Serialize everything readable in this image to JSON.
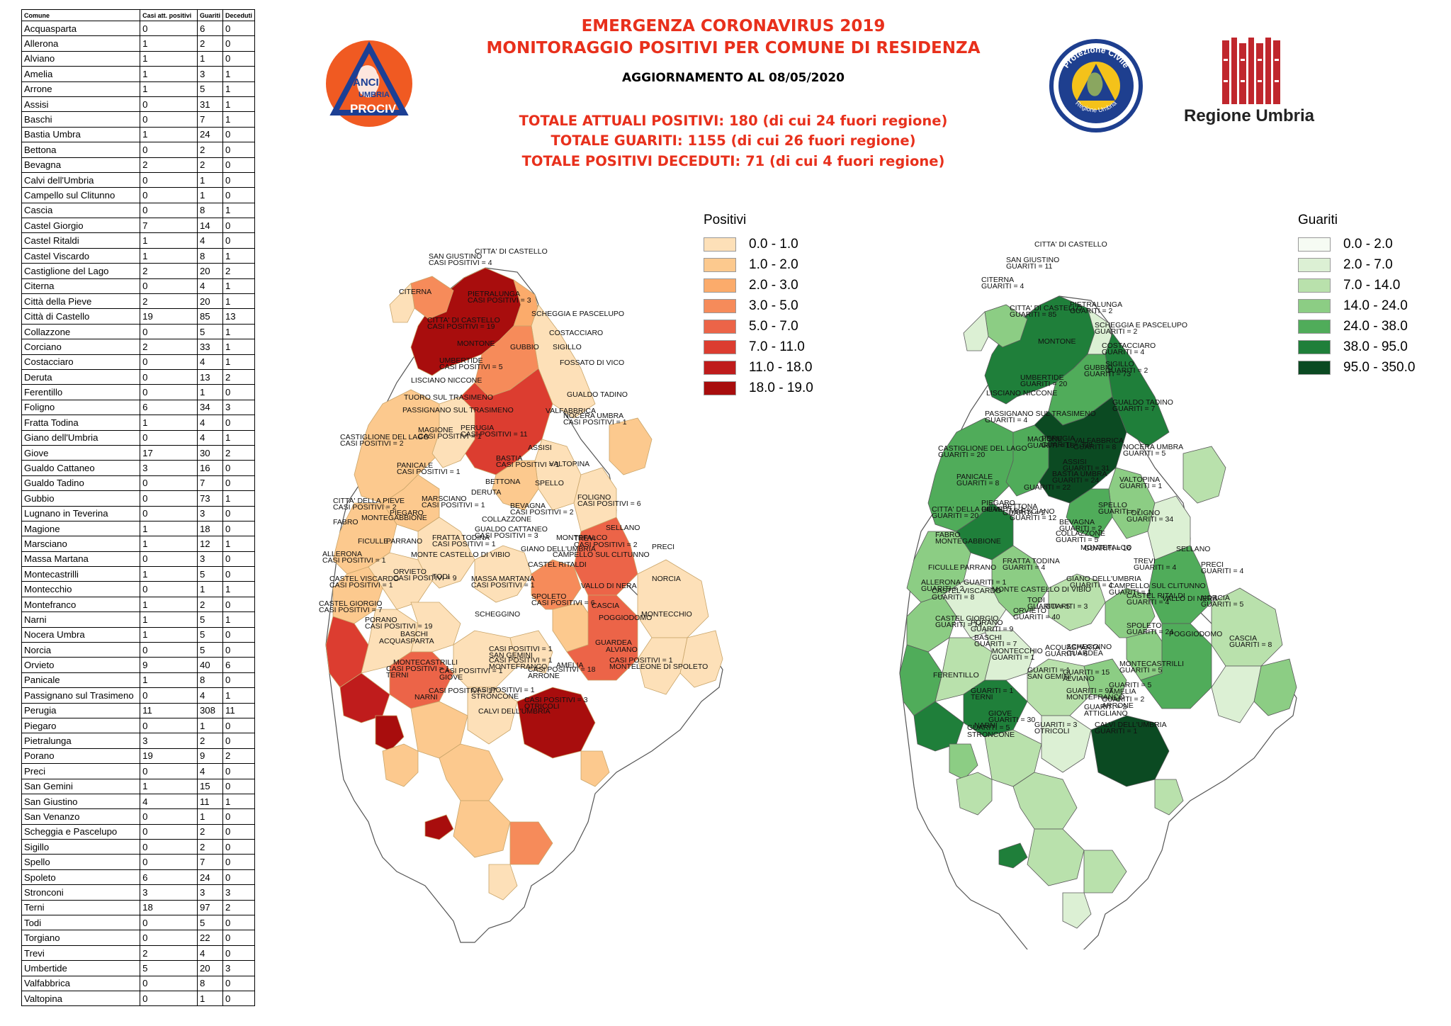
{
  "table": {
    "headers": [
      "Comune",
      "Casi att. positivi",
      "Guariti",
      "Deceduti"
    ],
    "rows": [
      [
        "Acquasparta",
        "0",
        "6",
        "0"
      ],
      [
        "Allerona",
        "1",
        "2",
        "0"
      ],
      [
        "Alviano",
        "1",
        "1",
        "0"
      ],
      [
        "Amelia",
        "1",
        "3",
        "1"
      ],
      [
        "Arrone",
        "1",
        "5",
        "1"
      ],
      [
        "Assisi",
        "0",
        "31",
        "1"
      ],
      [
        "Baschi",
        "0",
        "7",
        "1"
      ],
      [
        "Bastia Umbra",
        "1",
        "24",
        "0"
      ],
      [
        "Bettona",
        "0",
        "2",
        "0"
      ],
      [
        "Bevagna",
        "2",
        "2",
        "0"
      ],
      [
        "Calvi dell'Umbria",
        "0",
        "1",
        "0"
      ],
      [
        "Campello sul Clitunno",
        "0",
        "1",
        "0"
      ],
      [
        "Cascia",
        "0",
        "8",
        "1"
      ],
      [
        "Castel Giorgio",
        "7",
        "14",
        "0"
      ],
      [
        "Castel Ritaldi",
        "1",
        "4",
        "0"
      ],
      [
        "Castel Viscardo",
        "1",
        "8",
        "1"
      ],
      [
        "Castiglione del Lago",
        "2",
        "20",
        "2"
      ],
      [
        "Citerna",
        "0",
        "4",
        "1"
      ],
      [
        "Città  della Pieve",
        "2",
        "20",
        "1"
      ],
      [
        "Città  di Castello",
        "19",
        "85",
        "13"
      ],
      [
        "Collazzone",
        "0",
        "5",
        "1"
      ],
      [
        "Corciano",
        "2",
        "33",
        "1"
      ],
      [
        "Costacciaro",
        "0",
        "4",
        "1"
      ],
      [
        "Deruta",
        "0",
        "13",
        "2"
      ],
      [
        "Ferentillo",
        "0",
        "1",
        "0"
      ],
      [
        "Foligno",
        "6",
        "34",
        "3"
      ],
      [
        "Fratta Todina",
        "1",
        "4",
        "0"
      ],
      [
        "Giano dell'Umbria",
        "0",
        "4",
        "1"
      ],
      [
        "Giove",
        "17",
        "30",
        "2"
      ],
      [
        "Gualdo Cattaneo",
        "3",
        "16",
        "0"
      ],
      [
        "Gualdo Tadino",
        "0",
        "7",
        "0"
      ],
      [
        "Gubbio",
        "0",
        "73",
        "1"
      ],
      [
        "Lugnano in Teverina",
        "0",
        "3",
        "0"
      ],
      [
        "Magione",
        "1",
        "18",
        "0"
      ],
      [
        "Marsciano",
        "1",
        "12",
        "1"
      ],
      [
        "Massa Martana",
        "0",
        "3",
        "0"
      ],
      [
        "Montecastrilli",
        "1",
        "5",
        "0"
      ],
      [
        "Montecchio",
        "0",
        "1",
        "1"
      ],
      [
        "Montefranco",
        "1",
        "2",
        "0"
      ],
      [
        "Narni",
        "1",
        "5",
        "1"
      ],
      [
        "Nocera Umbra",
        "1",
        "5",
        "0"
      ],
      [
        "Norcia",
        "0",
        "5",
        "0"
      ],
      [
        "Orvieto",
        "9",
        "40",
        "6"
      ],
      [
        "Panicale",
        "1",
        "8",
        "0"
      ],
      [
        "Passignano sul Trasimeno",
        "0",
        "4",
        "1"
      ],
      [
        "Perugia",
        "11",
        "308",
        "11"
      ],
      [
        "Piegaro",
        "0",
        "1",
        "0"
      ],
      [
        "Pietralunga",
        "3",
        "2",
        "0"
      ],
      [
        "Porano",
        "19",
        "9",
        "2"
      ],
      [
        "Preci",
        "0",
        "4",
        "0"
      ],
      [
        "San Gemini",
        "1",
        "15",
        "0"
      ],
      [
        "San Giustino",
        "4",
        "11",
        "1"
      ],
      [
        "San Venanzo",
        "0",
        "1",
        "0"
      ],
      [
        "Scheggia e Pascelupo",
        "0",
        "2",
        "0"
      ],
      [
        "Sigillo",
        "0",
        "2",
        "0"
      ],
      [
        "Spello",
        "0",
        "7",
        "0"
      ],
      [
        "Spoleto",
        "6",
        "24",
        "0"
      ],
      [
        "Stronconi",
        "3",
        "3",
        "3"
      ],
      [
        "Terni",
        "18",
        "97",
        "2"
      ],
      [
        "Todi",
        "0",
        "5",
        "0"
      ],
      [
        "Torgiano",
        "0",
        "22",
        "0"
      ],
      [
        "Trevi",
        "2",
        "4",
        "0"
      ],
      [
        "Umbertide",
        "5",
        "20",
        "3"
      ],
      [
        "Valfabbrica",
        "0",
        "8",
        "0"
      ],
      [
        "Valtopina",
        "0",
        "1",
        "0"
      ]
    ]
  },
  "header": {
    "title1": "EMERGENZA CORONAVIRUS 2019",
    "title2": "MONITORAGGIO POSITIVI PER COMUNE DI RESIDENZA",
    "update": "AGGIORNAMENTO AL 08/05/2020",
    "tot1": "TOTALE ATTUALI POSITIVI: 180 (di cui 24 fuori regione)",
    "tot2": "TOTALE GUARITI: 1155 (di cui 26 fuori regione)",
    "tot3": "TOTALE POSITIVI DECEDUTI: 71 (di cui 4 fuori regione)"
  },
  "logos": {
    "anci_line1": "ANCI",
    "anci_line2": "UMBRIA",
    "anci_line3": "PROCIV",
    "pc_text": "Protezione Civile",
    "pc_sub": "Regione Umbria",
    "ru_text": "Regione Umbria"
  },
  "legend_positivi": {
    "title": "Positivi",
    "items": [
      {
        "label": "0.0 - 1.0",
        "color": "#fde0b8"
      },
      {
        "label": "1.0 - 2.0",
        "color": "#fcc98e"
      },
      {
        "label": "2.0 - 3.0",
        "color": "#fbab6b"
      },
      {
        "label": "3.0 - 5.0",
        "color": "#f68b5a"
      },
      {
        "label": "5.0 - 7.0",
        "color": "#ec6448"
      },
      {
        "label": "7.0 - 11.0",
        "color": "#dc3d30"
      },
      {
        "label": "11.0 - 18.0",
        "color": "#bf1c1c"
      },
      {
        "label": "18.0 - 19.0",
        "color": "#a80d0d"
      }
    ]
  },
  "legend_guariti": {
    "title": "Guariti",
    "items": [
      {
        "label": "0.0 - 2.0",
        "color": "#f6fbf3"
      },
      {
        "label": "2.0 - 7.0",
        "color": "#dcf0d4"
      },
      {
        "label": "7.0 - 14.0",
        "color": "#b9e1ac"
      },
      {
        "label": "14.0 - 24.0",
        "color": "#8ccd84"
      },
      {
        "label": "24.0 - 38.0",
        "color": "#50ac5a"
      },
      {
        "label": "38.0 - 95.0",
        "color": "#1f7f3a"
      },
      {
        "label": "95.0 - 350.0",
        "color": "#0b4a22"
      }
    ]
  },
  "map_positivi_labels": [
    "CITTA' DI CASTELLO",
    "SAN GIUSTINO",
    "CASI POSITIVI = 4",
    "CITERNA",
    "CITTA' DI CASTELLO",
    "CASI POSITIVI = 19",
    "PIETRALUNGA",
    "CASI POSITIVI = 3",
    "MONTONE",
    "UMBERTIDE",
    "CASI POSITIVI = 5",
    "SCHEGGIA E PASCELUPO",
    "COSTACCIARO",
    "SIGILLO",
    "GUBBIO",
    "FOSSATO DI VICO",
    "LISCIANO NICCONE",
    "TUORO SUL TRASIMENO",
    "PASSIGNANO SUL TRASIMENO",
    "PERUGIA",
    "CASI POSITIVI = 11",
    "GUALDO TADINO",
    "VALFABBRICA",
    "CASTIGLIONE DEL LAGO",
    "CASI POSITIVI = 2",
    "MAGIONE",
    "CASI POSITIVI = 1",
    "NOCERA UMBRA",
    "CASI POSITIVI = 1",
    "ASSISI",
    "BASTIA",
    "CASI POSITIVI = 1",
    "PANICALE",
    "CASI POSITIVI = 1",
    "VALTOPINA",
    "BETTONA",
    "SPELLO",
    "CITTA' DELLA PIEVE",
    "CASI POSITIVI = 2",
    "PIEGARO",
    "MARSCIANO",
    "CASI POSITIVI = 1",
    "DERUTA",
    "BEVAGNA",
    "CASI POSITIVI = 2",
    "FOLIGNO",
    "CASI POSITIVI = 6",
    "FABRO",
    "MONTEGABBIONE",
    "COLLAZZONE",
    "GUALDO CATTANEO",
    "CASI POSITIVI = 3",
    "SELLANO",
    "TREVI",
    "CASI POSITIVI = 2",
    "FICULLE",
    "PARRANO",
    "FRATTA TODINA",
    "CASI POSITIVI = 1",
    "MONTEFALCO",
    "ALLERONA",
    "CASI POSITIVI = 1",
    "MONTE CASTELLO DI VIBIO",
    "GIANO DELL'UMBRIA",
    "CAMPELLO SUL CLITUNNO",
    "PRECI",
    "CASTEL VISCARDO",
    "CASI POSITIVI = 1",
    "ORVIETO",
    "CASI POSITIVI = 9",
    "TODI",
    "MASSA MARTANA",
    "CASI POSITIVI = 1",
    "CASTEL RITALDI",
    "CASTEL GIORGIO",
    "CASI POSITIVI = 7",
    "SPOLETO",
    "CASI POSITIVI = 6",
    "VALLO DI NERA",
    "NORCIA",
    "PORANO",
    "CASI POSITIVI = 19",
    "BASCHI",
    "POGGIODOMO",
    "CASCIA",
    "MONTECCHIO",
    "ACQUASPARTA",
    "SCHEGGINO",
    "GUARDEA",
    "MONTECASTRILLI",
    "CASI POSITIVI = 1",
    "SAN GEMINI",
    "CASI POSITIVI = 1",
    "MONTEFRANCO",
    "CASI POSITIVI = 1",
    "MONTELEONE DI SPOLETO",
    "ALVIANO",
    "CASI POSITIVI = 1",
    "TERNI",
    "CASI POSITIVI = 18",
    "ARRONE",
    "AMELIA",
    "CASI POSITIVI = 1",
    "GIOVE",
    "CASI POSITIVI = 17",
    "NARNI",
    "CASI POSITIVI = 1",
    "STRONCONE",
    "CASI POSITIVI = 3",
    "OTRICOLI",
    "CALVI DELL'UMBRIA"
  ],
  "map_guariti_labels": [
    "CITTA' DI CASTELLO",
    "SAN GIUSTINO",
    "GUARITI = 11",
    "CITERNA",
    "GUARITI = 4",
    "CITTA' DI CASTELLO",
    "GUARITI = 85",
    "PIETRALUNGA",
    "GUARITI = 2",
    "SCHEGGIA E PASCELUPO",
    "GUARITI = 2",
    "MONTONE",
    "COSTACCIARO",
    "GUARITI = 4",
    "SIGILLO",
    "GUARITI = 2",
    "UMBERTIDE",
    "GUARITI = 20",
    "GUBBIO",
    "GUARITI = 73",
    "LISCIANO NICCONE",
    "GUALDO TADINO",
    "GUARITI = 7",
    "PASSIGNANO SUL TRASIMENO",
    "GUARITI = 4",
    "VALFABBRICA",
    "GUARITI = 8",
    "CASTIGLIONE DEL LAGO",
    "GUARITI = 20",
    "MAGIONE",
    "GUARITI = 18",
    "PERUGIA",
    "GUARITI = 308",
    "NOCERA UMBRA",
    "GUARITI = 5",
    "ASSISI",
    "GUARITI = 31",
    "BASTIA UMBRA",
    "GUARITI = 24",
    "VALTOPINA",
    "GUARITI = 1",
    "PANICALE",
    "GUARITI = 8",
    "GUARITI = 22",
    "BETTONA",
    "GUARITI = 2",
    "SPELLO",
    "GUARITI = 7",
    "CITTA' DELLA PIEVE",
    "GUARITI = 20",
    "PIEGARO",
    "GUARITI = 1",
    "MARSCIANO",
    "GUARITI = 12",
    "FOLIGNO",
    "GUARITI = 34",
    "BEVAGNA",
    "GUARITI = 2",
    "FABRO",
    "MONTEGABBIONE",
    "COLLAZZONE",
    "GUARITI = 5",
    "GUARITI = 16",
    "MONTEFALCO",
    "SELLANO",
    "FICULLE",
    "PARRANO",
    "FRATTA TODINA",
    "GUARITI = 4",
    "TREVI",
    "GUARITI = 4",
    "PRECI",
    "GUARITI = 4",
    "ALLERONA",
    "GUARITI = 2",
    "GUARITI = 1",
    "MONTE CASTELLO DI VIBIO",
    "GIANO DELL'UMBRIA",
    "GUARITI = 4",
    "CAMPELLO SUL CLITUNNO",
    "GUARITI = 1",
    "CASTEL VISCARDO",
    "GUARITI = 8",
    "TODI",
    "GUARITI = 5",
    "GUARITI = 3",
    "CASTEL RITALDI",
    "GUARITI = 4",
    "VALLO DI NERA",
    "NORCIA",
    "GUARITI = 5",
    "ORVIETO",
    "GUARITI = 40",
    "CASTEL GIORGIO",
    "GUARITI = 14",
    "PORANO",
    "GUARITI = 9",
    "BASCHI",
    "GUARITI = 7",
    "SPOLETO",
    "GUARITI = 24",
    "POGGIODOMO",
    "CASCIA",
    "GUARITI = 8",
    "MONTECCHIO",
    "GUARITI = 1",
    "ACQUASPARTA",
    "GUARITI = 6",
    "SCHEGGINO",
    "GUARDEA",
    "MONTECASTRILLI",
    "GUARITI = 5",
    "FERENTILLO",
    "GUARITI = 1",
    "SAN GEMINI",
    "GUARITI = 15",
    "ALVIANO",
    "GUARITI = 1",
    "TERNI",
    "GUARITI = 97",
    "MONTEFRANCO",
    "GUARITI = 2",
    "ARRONE",
    "GUARITI = 5",
    "AMELIA",
    "GUARITI = 3",
    "ATTIGLIANO",
    "GIOVE",
    "GUARITI = 30",
    "NARNI",
    "GUARITI = 5",
    "STRONCONE",
    "GUARITI = 3",
    "OTRICOLI",
    "CALVI DELL'UMBRIA",
    "GUARITI = 1"
  ]
}
